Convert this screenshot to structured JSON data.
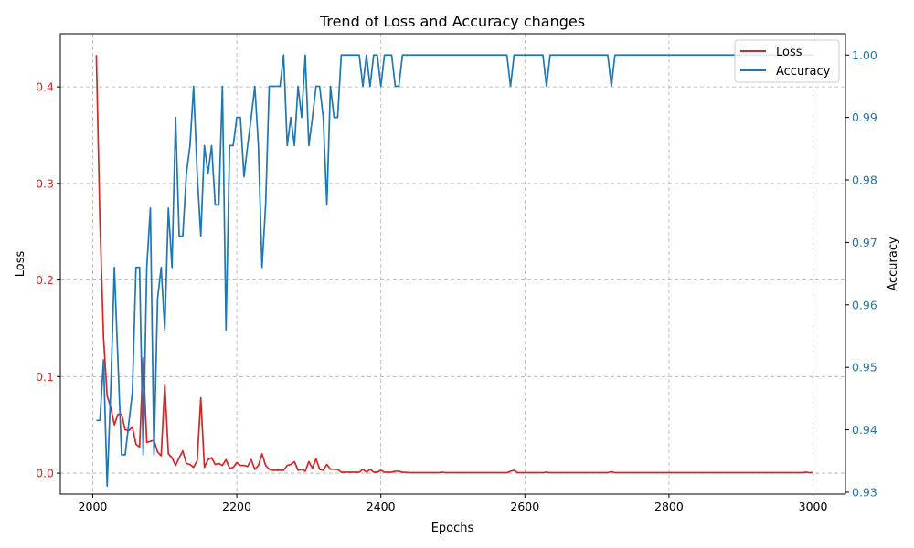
{
  "chart_data": {
    "type": "line",
    "title": "Trend of Loss and Accuracy changes",
    "xlabel": "Epochs",
    "ylabel_left": "Loss",
    "ylabel_right": "Accuracy",
    "xlim": [
      1955,
      3045
    ],
    "ylim_left": [
      -0.0217,
      0.455
    ],
    "ylim_right": [
      0.9297,
      1.0034
    ],
    "x_ticks": [
      "2000",
      "2200",
      "2400",
      "2600",
      "2800",
      "3000"
    ],
    "y_ticks_left": [
      "0.0",
      "0.1",
      "0.2",
      "0.3",
      "0.4"
    ],
    "y_ticks_right": [
      "0.93",
      "0.94",
      "0.95",
      "0.96",
      "0.97",
      "0.98",
      "0.99",
      "1.00"
    ],
    "grid": true,
    "legend_position": "top-right",
    "colors": {
      "loss": "#d62728",
      "accuracy": "#1f77b4",
      "grid": "#b0b0b0"
    },
    "series": [
      {
        "name": "Loss",
        "axis": "left",
        "points": [
          [
            2005,
            0.433
          ],
          [
            2010,
            0.26
          ],
          [
            2015,
            0.14
          ],
          [
            2020,
            0.08
          ],
          [
            2025,
            0.068
          ],
          [
            2030,
            0.05
          ],
          [
            2035,
            0.061
          ],
          [
            2040,
            0.061
          ],
          [
            2045,
            0.045
          ],
          [
            2050,
            0.044
          ],
          [
            2055,
            0.048
          ],
          [
            2060,
            0.03
          ],
          [
            2065,
            0.027
          ],
          [
            2070,
            0.12
          ],
          [
            2075,
            0.032
          ],
          [
            2080,
            0.033
          ],
          [
            2085,
            0.034
          ],
          [
            2090,
            0.022
          ],
          [
            2095,
            0.018
          ],
          [
            2100,
            0.092
          ],
          [
            2105,
            0.02
          ],
          [
            2110,
            0.016
          ],
          [
            2115,
            0.008
          ],
          [
            2120,
            0.016
          ],
          [
            2125,
            0.023
          ],
          [
            2130,
            0.01
          ],
          [
            2135,
            0.009
          ],
          [
            2140,
            0.006
          ],
          [
            2145,
            0.013
          ],
          [
            2150,
            0.078
          ],
          [
            2155,
            0.006
          ],
          [
            2160,
            0.014
          ],
          [
            2165,
            0.016
          ],
          [
            2170,
            0.009
          ],
          [
            2175,
            0.01
          ],
          [
            2180,
            0.008
          ],
          [
            2185,
            0.014
          ],
          [
            2190,
            0.005
          ],
          [
            2195,
            0.006
          ],
          [
            2200,
            0.011
          ],
          [
            2205,
            0.008
          ],
          [
            2210,
            0.008
          ],
          [
            2215,
            0.007
          ],
          [
            2220,
            0.014
          ],
          [
            2225,
            0.004
          ],
          [
            2230,
            0.008
          ],
          [
            2235,
            0.02
          ],
          [
            2240,
            0.008
          ],
          [
            2245,
            0.004
          ],
          [
            2250,
            0.003
          ],
          [
            2255,
            0.003
          ],
          [
            2260,
            0.003
          ],
          [
            2265,
            0.003
          ],
          [
            2270,
            0.008
          ],
          [
            2275,
            0.009
          ],
          [
            2280,
            0.012
          ],
          [
            2285,
            0.003
          ],
          [
            2290,
            0.004
          ],
          [
            2295,
            0.002
          ],
          [
            2300,
            0.012
          ],
          [
            2305,
            0.005
          ],
          [
            2310,
            0.015
          ],
          [
            2315,
            0.004
          ],
          [
            2320,
            0.003
          ],
          [
            2325,
            0.009
          ],
          [
            2330,
            0.004
          ],
          [
            2335,
            0.004
          ],
          [
            2340,
            0.004
          ],
          [
            2345,
            0.001
          ],
          [
            2350,
            0.001
          ],
          [
            2355,
            0.001
          ],
          [
            2360,
            0.001
          ],
          [
            2365,
            0.001
          ],
          [
            2370,
            0.001
          ],
          [
            2375,
            0.004
          ],
          [
            2380,
            0.001
          ],
          [
            2385,
            0.004
          ],
          [
            2390,
            0.001
          ],
          [
            2395,
            0.001
          ],
          [
            2400,
            0.003
          ],
          [
            2405,
            0.001
          ],
          [
            2410,
            0.001
          ],
          [
            2415,
            0.001
          ],
          [
            2420,
            0.002
          ],
          [
            2425,
            0.002
          ],
          [
            2430,
            0.001
          ],
          [
            2440,
            0.0005
          ],
          [
            2480,
            0.0005
          ],
          [
            2485,
            0.001
          ],
          [
            2490,
            0.0005
          ],
          [
            2575,
            0.0005
          ],
          [
            2580,
            0.002
          ],
          [
            2585,
            0.003
          ],
          [
            2590,
            0.0005
          ],
          [
            2625,
            0.0005
          ],
          [
            2630,
            0.001
          ],
          [
            2635,
            0.0005
          ],
          [
            2715,
            0.0005
          ],
          [
            2720,
            0.0015
          ],
          [
            2725,
            0.0005
          ],
          [
            2985,
            0.0005
          ],
          [
            2990,
            0.001
          ],
          [
            2995,
            0.0005
          ],
          [
            3000,
            0.0005
          ]
        ]
      },
      {
        "name": "Accuracy",
        "axis": "right",
        "points": [
          [
            2005,
            0.9415
          ],
          [
            2010,
            0.9415
          ],
          [
            2015,
            0.9512
          ],
          [
            2020,
            0.931
          ],
          [
            2025,
            0.9465
          ],
          [
            2030,
            0.966
          ],
          [
            2035,
            0.951
          ],
          [
            2040,
            0.936
          ],
          [
            2045,
            0.936
          ],
          [
            2050,
            0.941
          ],
          [
            2055,
            0.946
          ],
          [
            2060,
            0.966
          ],
          [
            2065,
            0.966
          ],
          [
            2070,
            0.936
          ],
          [
            2075,
            0.966
          ],
          [
            2080,
            0.9755
          ],
          [
            2085,
            0.936
          ],
          [
            2090,
            0.961
          ],
          [
            2095,
            0.966
          ],
          [
            2100,
            0.956
          ],
          [
            2105,
            0.9755
          ],
          [
            2110,
            0.966
          ],
          [
            2115,
            0.99
          ],
          [
            2120,
            0.971
          ],
          [
            2125,
            0.971
          ],
          [
            2130,
            0.981
          ],
          [
            2135,
            0.9855
          ],
          [
            2140,
            0.995
          ],
          [
            2145,
            0.981
          ],
          [
            2150,
            0.971
          ],
          [
            2155,
            0.9855
          ],
          [
            2160,
            0.981
          ],
          [
            2165,
            0.9855
          ],
          [
            2170,
            0.976
          ],
          [
            2175,
            0.976
          ],
          [
            2180,
            0.995
          ],
          [
            2185,
            0.956
          ],
          [
            2190,
            0.9855
          ],
          [
            2195,
            0.9855
          ],
          [
            2200,
            0.99
          ],
          [
            2205,
            0.99
          ],
          [
            2210,
            0.9805
          ],
          [
            2215,
            0.9855
          ],
          [
            2220,
            0.99
          ],
          [
            2225,
            0.995
          ],
          [
            2230,
            0.9855
          ],
          [
            2235,
            0.966
          ],
          [
            2240,
            0.976
          ],
          [
            2245,
            0.995
          ],
          [
            2250,
            0.995
          ],
          [
            2255,
            0.995
          ],
          [
            2260,
            0.995
          ],
          [
            2265,
            1.0
          ],
          [
            2270,
            0.9855
          ],
          [
            2275,
            0.99
          ],
          [
            2280,
            0.9855
          ],
          [
            2285,
            0.995
          ],
          [
            2290,
            0.99
          ],
          [
            2295,
            1.0
          ],
          [
            2300,
            0.9855
          ],
          [
            2305,
            0.99
          ],
          [
            2310,
            0.995
          ],
          [
            2315,
            0.995
          ],
          [
            2320,
            0.99
          ],
          [
            2325,
            0.976
          ],
          [
            2330,
            0.995
          ],
          [
            2335,
            0.99
          ],
          [
            2340,
            0.99
          ],
          [
            2345,
            1.0
          ],
          [
            2350,
            1.0
          ],
          [
            2355,
            1.0
          ],
          [
            2360,
            1.0
          ],
          [
            2365,
            1.0
          ],
          [
            2370,
            1.0
          ],
          [
            2375,
            0.995
          ],
          [
            2380,
            1.0
          ],
          [
            2385,
            0.995
          ],
          [
            2390,
            1.0
          ],
          [
            2395,
            1.0
          ],
          [
            2400,
            0.995
          ],
          [
            2405,
            1.0
          ],
          [
            2410,
            1.0
          ],
          [
            2415,
            1.0
          ],
          [
            2420,
            0.995
          ],
          [
            2425,
            0.995
          ],
          [
            2430,
            1.0
          ],
          [
            2575,
            1.0
          ],
          [
            2580,
            0.995
          ],
          [
            2585,
            1.0
          ],
          [
            2625,
            1.0
          ],
          [
            2630,
            0.995
          ],
          [
            2635,
            1.0
          ],
          [
            2715,
            1.0
          ],
          [
            2720,
            0.995
          ],
          [
            2725,
            1.0
          ],
          [
            3000,
            1.0
          ]
        ]
      }
    ]
  }
}
